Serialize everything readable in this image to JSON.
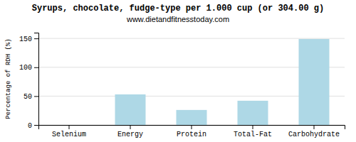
{
  "chart_data": {
    "type": "bar",
    "title": "Syrups, chocolate, fudge-type per 1.000 cup (or 304.00 g)",
    "subtitle": "www.dietandfitnesstoday.com",
    "ylabel": "Percentage of RDH (%)",
    "categories": [
      "Selenium",
      "Energy",
      "Protein",
      "Total-Fat",
      "Carbohydrate"
    ],
    "values": [
      0,
      53,
      26,
      42,
      149
    ],
    "color": "#aed8e6",
    "ylim": [
      0,
      160
    ],
    "yticks": [
      0,
      50,
      100,
      150
    ],
    "grid": true
  }
}
